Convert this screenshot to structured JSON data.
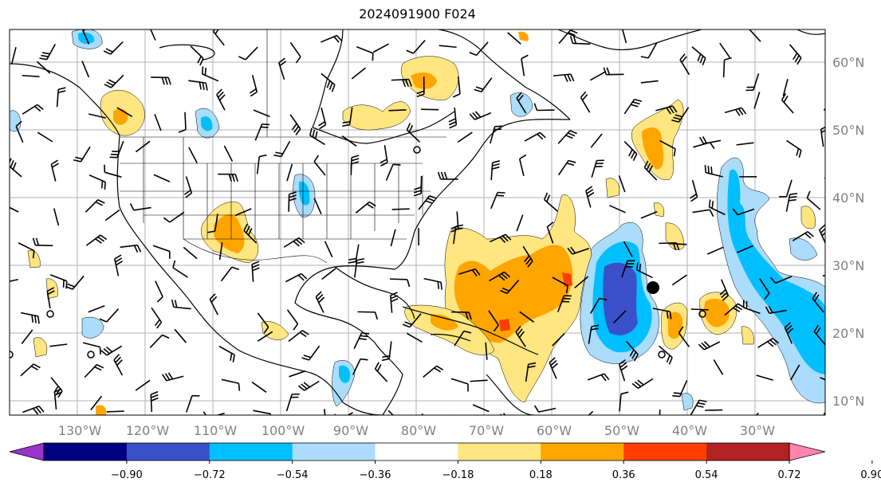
{
  "title": "2024091900 F024",
  "lon_labels": [
    "130°W",
    "120°W",
    "110°W",
    "100°W",
    "90°W",
    "80°W",
    "70°W",
    "60°W",
    "50°W",
    "40°W",
    "30°W"
  ],
  "lat_labels": [
    "60°N",
    "50°N",
    "40°N",
    "30°N",
    "20°N",
    "10°N"
  ],
  "colorbar": {
    "ticks": [
      "−0.90",
      "−0.72",
      "−0.54",
      "−0.36",
      "−0.18",
      "0.18",
      "0.36",
      "0.54",
      "0.72",
      "0.90"
    ],
    "colors": [
      "#9933cc",
      "#000080",
      "#3a50c8",
      "#00bfff",
      "#abdcfb",
      "#ffffff",
      "#ffe680",
      "#ffa500",
      "#ff3d00",
      "#b22222",
      "#ff85b0"
    ]
  },
  "palette": {
    "purple_low": "#9933cc",
    "navy": "#000080",
    "blue": "#3a50c8",
    "cyan": "#00bfff",
    "light_blue": "#abdcfb",
    "yellow": "#ffe680",
    "orange": "#ffa500",
    "red_orange": "#ff3d00",
    "dark_red": "#b22222",
    "pink_high": "#ff85b0"
  }
}
